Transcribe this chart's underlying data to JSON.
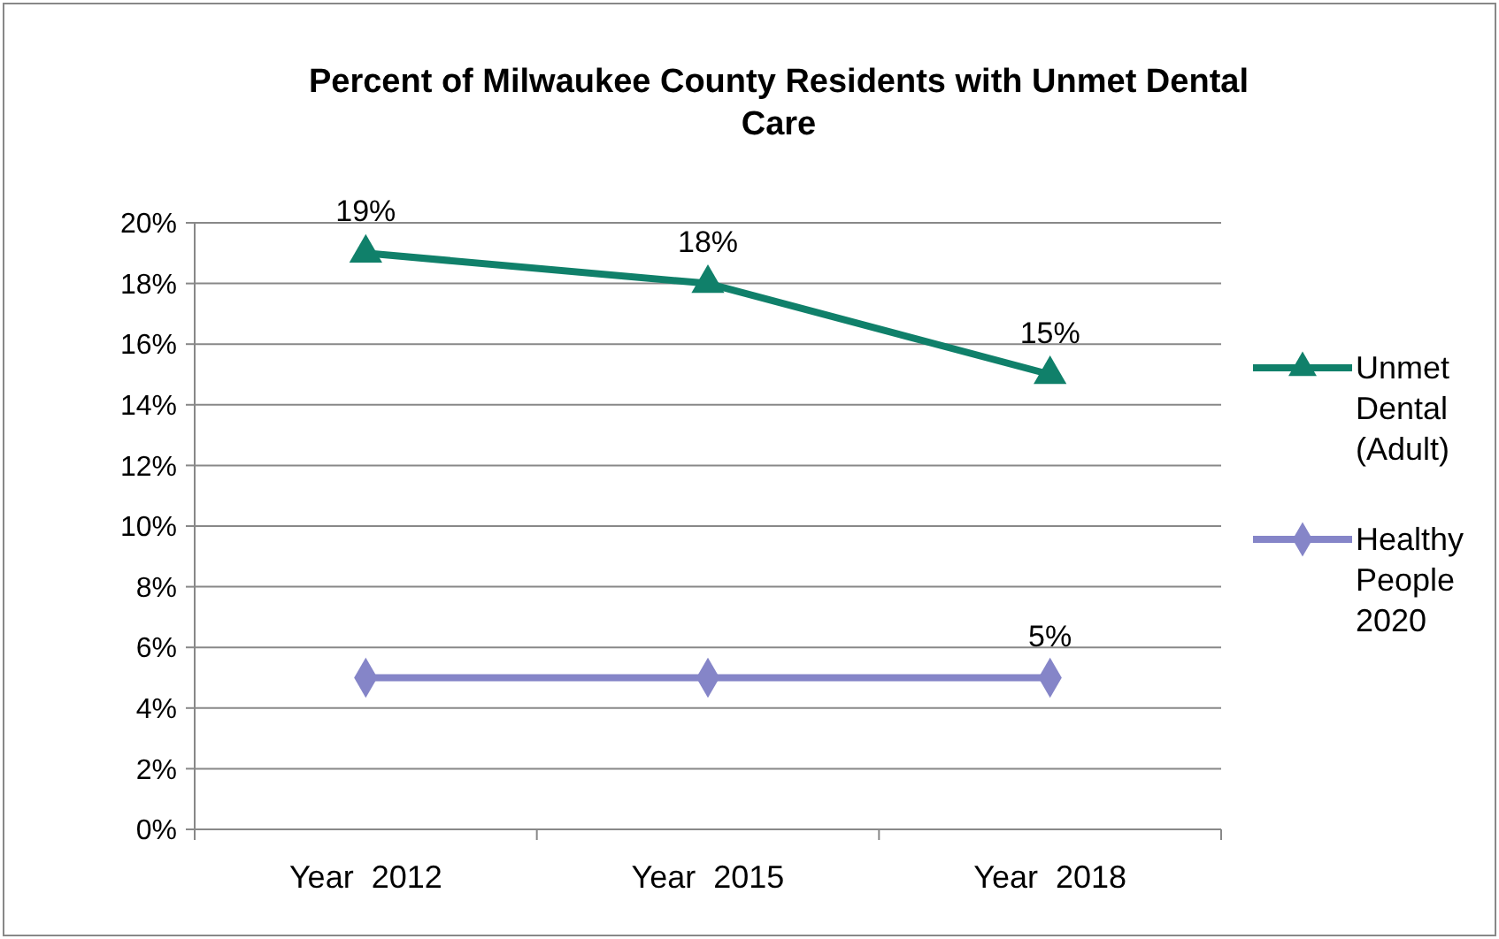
{
  "chart_data": {
    "type": "line",
    "title": "Percent of Milwaukee County Residents with Unmet Dental Care",
    "categories": [
      "Year  2012",
      "Year  2015",
      "Year  2018"
    ],
    "series": [
      {
        "name": "Unmet Dental (Adult)",
        "color": "#10806a",
        "marker": "triangle",
        "values": [
          19,
          18,
          15
        ],
        "value_labels": [
          "19%",
          "18%",
          "15%"
        ]
      },
      {
        "name": "Healthy People 2020",
        "color": "#8585c8",
        "marker": "diamond",
        "values": [
          5,
          5,
          5
        ],
        "value_labels": [
          null,
          null,
          "5%"
        ]
      }
    ],
    "ylim": [
      0,
      20
    ],
    "yticks": [
      {
        "value": 0,
        "label": "0%"
      },
      {
        "value": 2,
        "label": "2%"
      },
      {
        "value": 4,
        "label": "4%"
      },
      {
        "value": 6,
        "label": "6%"
      },
      {
        "value": 8,
        "label": "8%"
      },
      {
        "value": 10,
        "label": "10%"
      },
      {
        "value": 12,
        "label": "12%"
      },
      {
        "value": 14,
        "label": "14%"
      },
      {
        "value": 16,
        "label": "16%"
      },
      {
        "value": 18,
        "label": "18%"
      },
      {
        "value": 20,
        "label": "20%"
      }
    ],
    "grid": "y",
    "legend": "right"
  }
}
